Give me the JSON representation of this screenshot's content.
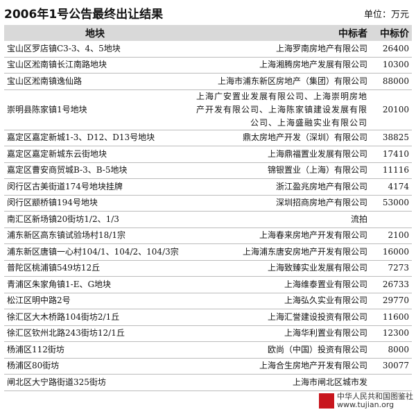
{
  "header": {
    "title": "2006年1号公告最终出让结果",
    "unit": "单位：万元"
  },
  "table": {
    "columns": [
      "地块",
      "中标者",
      "中标价"
    ],
    "rows": [
      [
        "宝山区罗店镇C3-3、4、5地块",
        "上海罗南房地产有限公司",
        "26400"
      ],
      [
        "宝山区淞南镇长江南路地块",
        "上海湘腾房地产发展有限公司",
        "10300"
      ],
      [
        "宝山区淞南镇逸仙路",
        "上海市浦东新区房地产（集团）有限公司",
        "88000"
      ],
      [
        "崇明县陈家镇1号地块",
        "上海广安置业发展有限公司、上海崇明房地产开发有限公司、上海陈家镇建设发展有限公司、上海盛融实业有限公司",
        "20100"
      ],
      [
        "嘉定区嘉定新城1-3、D12、D13号地块",
        "鼎太房地产开发（深圳）有限公司",
        "38825"
      ],
      [
        "嘉定区嘉定新城东云街地块",
        "上海鼎福置业发展有限公司",
        "17410"
      ],
      [
        "嘉定区曹安商贸城B-3、B-5地块",
        "锦银置业（上海）有限公司",
        "11116"
      ],
      [
        "闵行区古美街道174号地块挂牌",
        "浙江盈兆房地产有限公司",
        "4174"
      ],
      [
        "闵行区颛桥镇194号地块",
        "深圳招商房地产有限公司",
        "53000"
      ],
      [
        "南汇区新场镇20街坊1/2、1/3",
        "流拍"
      ],
      [
        "浦东新区高东镇试验场村18/1宗",
        "上海春来房地产开发有限公司",
        "2100"
      ],
      [
        "浦东新区唐镇一心村104/1、104/2、104/3宗",
        "上海浦东唐安房地产开发有限公司",
        "16000"
      ],
      [
        "普陀区桃浦镇549坊12丘",
        "上海致臻实业发展有限公司",
        "7273"
      ],
      [
        "青浦区朱家角镇1-E、G地块",
        "上海维泰置业有限公司",
        "26733"
      ],
      [
        "松江区明中路2号",
        "上海弘久实业有限公司",
        "29770"
      ],
      [
        "徐汇区大木桥路104街坊2/1丘",
        "上海汇誉建设投资有限公司",
        "11600"
      ],
      [
        "徐汇区钦州北路243街坊12/1丘",
        "上海华利置业有限公司",
        "12300"
      ],
      [
        "杨浦区112街坊",
        "欧尚（中国）投资有限公司",
        "8000"
      ],
      [
        "杨浦区80街坊",
        "上海合生房地产开发有限公司",
        "30077"
      ],
      [
        "闸北区大宁路街道325街坊",
        "上海市闸北区城市发"
      ]
    ]
  },
  "watermark": {
    "name": "中华人民共和国图鉴社",
    "url": "www.tujian.org"
  }
}
